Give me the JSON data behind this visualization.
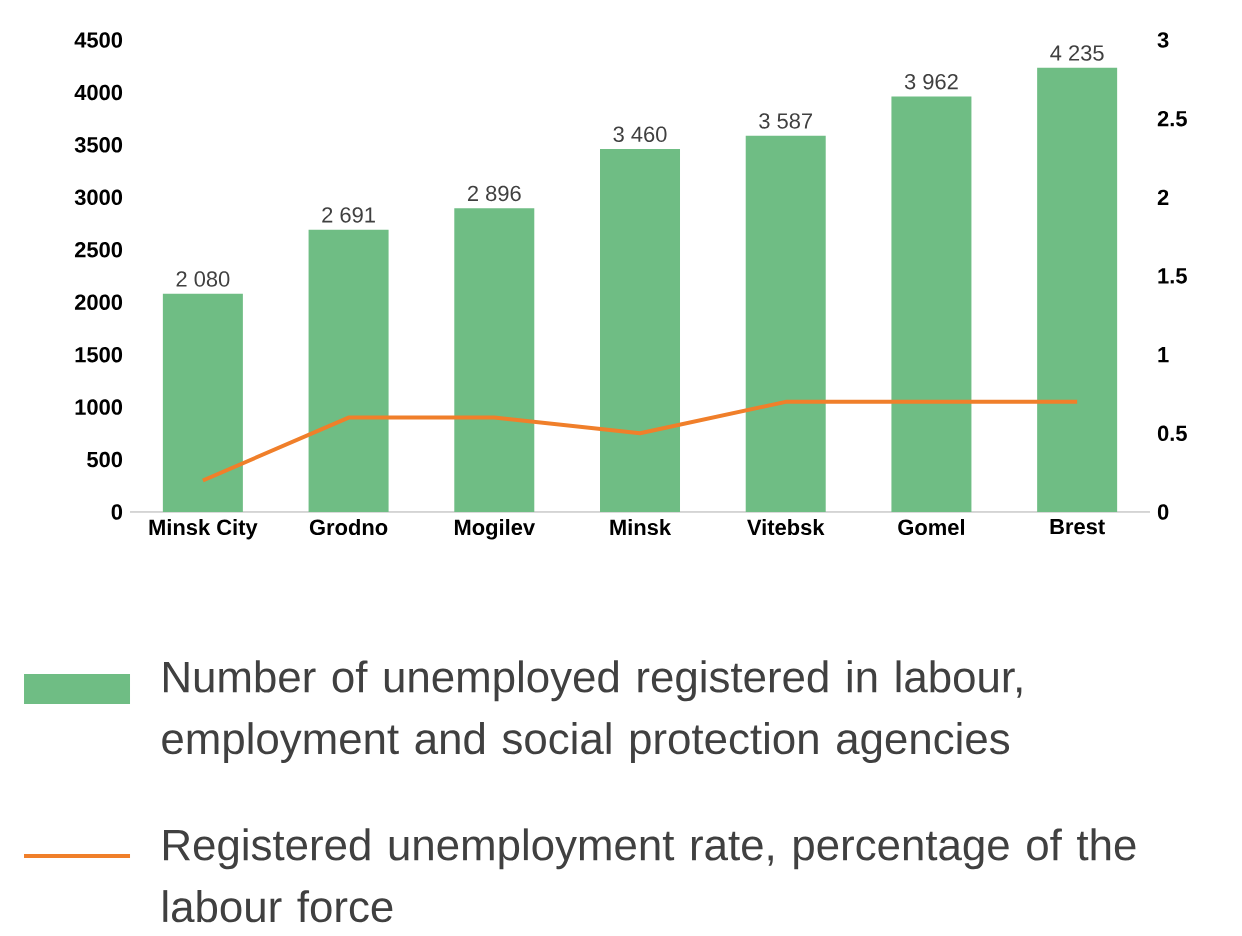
{
  "chart_data": {
    "type": "bar",
    "categories": [
      "Minsk City",
      "Grodno",
      "Mogilev",
      "Minsk",
      "Vitebsk",
      "Gomel",
      "Brest"
    ],
    "series": [
      {
        "name": "Number of unemployed registered in labour, employment and social protection agencies",
        "color": "#6fbd84",
        "values": [
          2080,
          2691,
          2896,
          3460,
          3587,
          3962,
          4235
        ],
        "value_labels": [
          "2 080",
          "2 691",
          "2 896",
          "3 460",
          "3 587",
          "3 962",
          "4 235"
        ]
      },
      {
        "name": "Registered unemployment rate, percentage of the labour force",
        "type": "line",
        "axis": "y2",
        "color": "#f07f2a",
        "values": [
          0.2,
          0.6,
          0.6,
          0.5,
          0.7,
          0.7,
          0.7
        ]
      }
    ],
    "ylim": [
      0,
      4500
    ],
    "yticks": [
      0,
      500,
      1000,
      1500,
      2000,
      2500,
      3000,
      3500,
      4000,
      4500
    ],
    "y2lim": [
      0,
      3
    ],
    "y2ticks": [
      0,
      0.5,
      1,
      1.5,
      2,
      2.5,
      3
    ],
    "grid": false,
    "legend": "bottom",
    "marker": "none"
  }
}
